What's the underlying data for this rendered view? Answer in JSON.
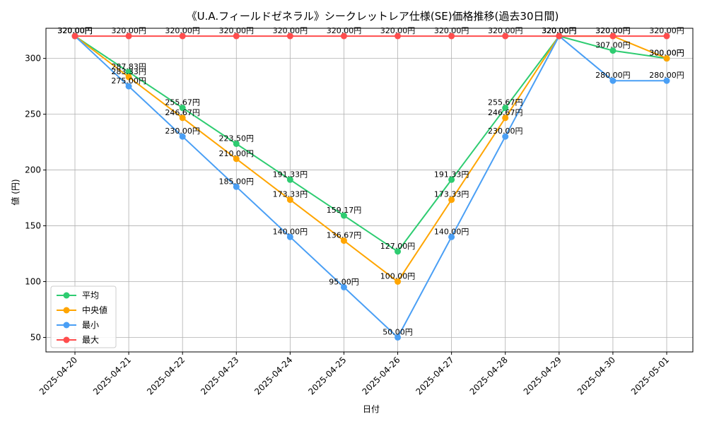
{
  "chart_data": {
    "type": "line",
    "title": "《U.A.フィールドゼネラル》シークレットレア仕様(SE)価格推移(過去30日間)",
    "xlabel": "日付",
    "ylabel": "値 (円)",
    "ylim": [
      37,
      327
    ],
    "yticks": [
      50,
      100,
      150,
      200,
      250,
      300
    ],
    "grid": true,
    "legend_position": "bottom-left",
    "categories": [
      "2025-04-20",
      "2025-04-21",
      "2025-04-22",
      "2025-04-23",
      "2025-04-24",
      "2025-04-25",
      "2025-04-26",
      "2025-04-27",
      "2025-04-28",
      "2025-04-29",
      "2025-04-30",
      "2025-05-01"
    ],
    "series": [
      {
        "name": "平均",
        "color": "#2ecc71",
        "values": [
          320.0,
          287.83,
          255.67,
          223.5,
          191.33,
          159.17,
          127.0,
          191.33,
          255.67,
          320.0,
          307.0,
          300.0
        ],
        "labels": [
          "320.00円",
          "287.83円",
          "255.67円",
          "223.50円",
          "191.33円",
          "159.17円",
          "127.00円",
          "191.33円",
          "255.67円",
          "320.00円",
          "307.00円",
          "300.00円"
        ]
      },
      {
        "name": "中央値",
        "color": "#ffa500",
        "values": [
          320.0,
          283.33,
          246.67,
          210.0,
          173.33,
          136.67,
          100.0,
          173.33,
          246.67,
          320.0,
          320.0,
          300.0
        ],
        "labels": [
          "320.00円",
          "283.33円",
          "246.67円",
          "210.00円",
          "173.33円",
          "136.67円",
          "100.00円",
          "173.33円",
          "246.67円",
          "320.00円",
          "320.00円",
          "300.00円"
        ]
      },
      {
        "name": "最小",
        "color": "#4a9ff5",
        "values": [
          320.0,
          275.0,
          230.0,
          185.0,
          140.0,
          95.0,
          50.0,
          140.0,
          230.0,
          320.0,
          280.0,
          280.0
        ],
        "labels": [
          "320.00円",
          "275.00円",
          "230.00円",
          "185.00円",
          "140.00円",
          "95.00円",
          "50.00円",
          "140.00円",
          "230.00円",
          "320.00円",
          "280.00円",
          "280.00円"
        ]
      },
      {
        "name": "最大",
        "color": "#ff4d4d",
        "values": [
          320.0,
          320.0,
          320.0,
          320.0,
          320.0,
          320.0,
          320.0,
          320.0,
          320.0,
          320.0,
          320.0,
          320.0
        ],
        "labels": [
          "320.00円",
          "320.00円",
          "320.00円",
          "320.00円",
          "320.00円",
          "320.00円",
          "320.00円",
          "320.00円",
          "320.00円",
          "320.00円",
          "320.00円",
          "320.00円"
        ]
      }
    ]
  }
}
